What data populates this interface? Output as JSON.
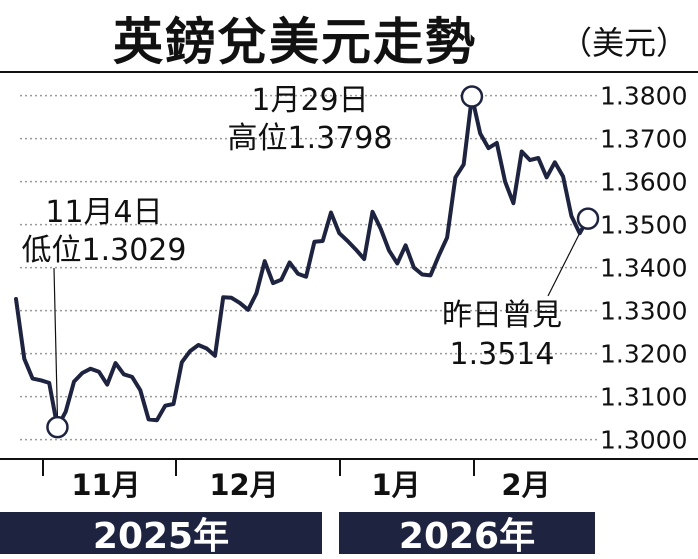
{
  "title": "英鎊兌美元走勢",
  "unit": "（美元）",
  "colors": {
    "line": "#1e2440",
    "band": "#1e2440",
    "grid": "#9a9a9a",
    "axis": "#111111"
  },
  "chart_data": {
    "type": "line",
    "title": "英鎊兌美元走勢",
    "ylabel": "（美元）",
    "ylim": [
      1.2955,
      1.3855
    ],
    "yticks": [
      "1.3000",
      "1.3100",
      "1.3200",
      "1.3300",
      "1.3400",
      "1.3500",
      "1.3600",
      "1.3700",
      "1.3800"
    ],
    "grid": true,
    "month_labels": [
      "11月",
      "12月",
      "1月",
      "2月"
    ],
    "year_labels": [
      "2025年",
      "2026年"
    ],
    "series": [
      {
        "values": [
          1.3327,
          1.3188,
          1.3142,
          1.3138,
          1.3132,
          1.3029,
          1.3065,
          1.3135,
          1.3155,
          1.3165,
          1.3158,
          1.3128,
          1.3178,
          1.3152,
          1.3146,
          1.3115,
          1.3047,
          1.3045,
          1.3079,
          1.3083,
          1.318,
          1.3206,
          1.322,
          1.3212,
          1.3195,
          1.3331,
          1.333,
          1.3318,
          1.3302,
          1.334,
          1.3415,
          1.3364,
          1.3372,
          1.3412,
          1.3386,
          1.3379,
          1.346,
          1.3462,
          1.3528,
          1.348,
          1.3462,
          1.3442,
          1.342,
          1.353,
          1.349,
          1.344,
          1.341,
          1.3452,
          1.34,
          1.3384,
          1.3382,
          1.3428,
          1.347,
          1.361,
          1.364,
          1.3798,
          1.3712,
          1.3678,
          1.369,
          1.36,
          1.355,
          1.367,
          1.365,
          1.3655,
          1.361,
          1.3645,
          1.3612,
          1.352,
          1.348,
          1.3514
        ]
      }
    ],
    "annotations": [
      {
        "date": "1月29日",
        "text": "高位1.3798",
        "value": 1.3798
      },
      {
        "date": "11月4日",
        "text": "低位1.3029",
        "value": 1.3029
      },
      {
        "date": "昨日曾見",
        "text": "1.3514",
        "value": 1.3514
      }
    ]
  }
}
